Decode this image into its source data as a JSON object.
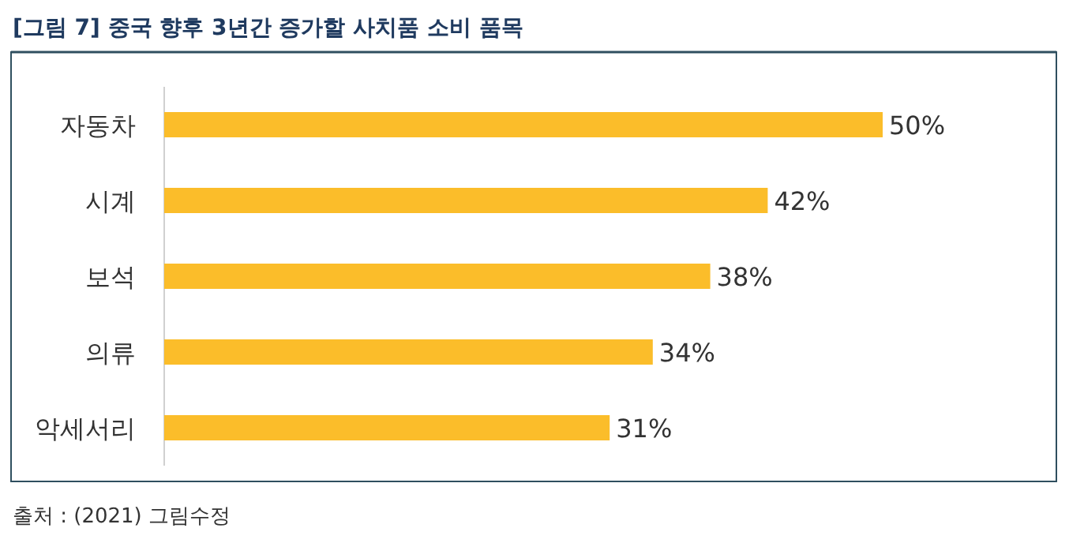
{
  "chart_data": {
    "type": "bar",
    "orientation": "horizontal",
    "title": "[그림 7] 중국 향후 3년간 증가할 사치품 소비 품목",
    "categories": [
      "자동차",
      "시계",
      "보석",
      "의류",
      "악세서리"
    ],
    "values": [
      50,
      42,
      38,
      34,
      31
    ],
    "value_labels": [
      "50%",
      "42%",
      "38%",
      "34%",
      "31%"
    ],
    "color": "#fbbd2a",
    "annotations": [
      "출처 : (2021) 그림수정"
    ]
  }
}
